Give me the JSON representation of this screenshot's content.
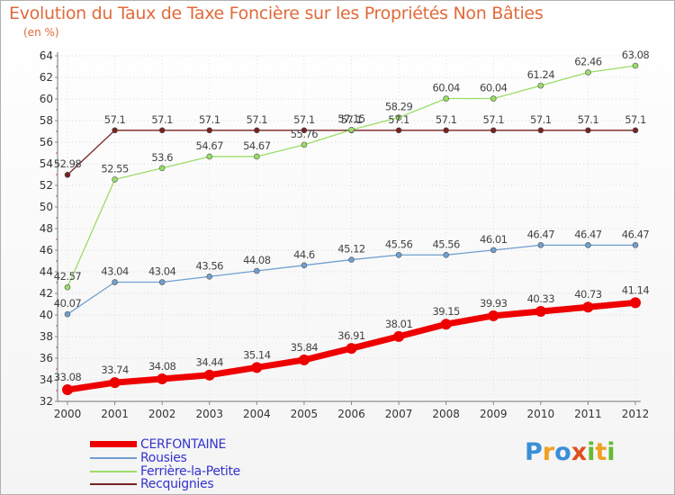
{
  "chart_data": {
    "type": "line",
    "title": "Evolution du Taux de Taxe Foncière sur les Propriétés Non Bâties",
    "ylabel": "(en %)",
    "xlabel": "",
    "ylim": [
      32,
      64
    ],
    "yticks": [
      32,
      34,
      36,
      38,
      40,
      42,
      44,
      46,
      48,
      50,
      52,
      54,
      56,
      58,
      60,
      62,
      64
    ],
    "categories": [
      "2000",
      "2001",
      "2002",
      "2003",
      "2004",
      "2005",
      "2006",
      "2007",
      "2008",
      "2009",
      "2010",
      "2011",
      "2012"
    ],
    "series": [
      {
        "name": "CERFONTAINE",
        "color": "#ee0000",
        "values": [
          33.08,
          33.74,
          34.08,
          34.44,
          35.14,
          35.84,
          36.91,
          38.01,
          39.15,
          39.93,
          40.33,
          40.73,
          41.14
        ],
        "labels": [
          "33.08",
          "33.74",
          "34.08",
          "34.44",
          "35.14",
          "35.84",
          "36.91",
          "38.01",
          "39.15",
          "39.93",
          "40.33",
          "40.73",
          "41.14"
        ]
      },
      {
        "name": "Rousies",
        "color": "#6f9fcf",
        "values": [
          40.07,
          43.04,
          43.04,
          43.56,
          44.08,
          44.6,
          45.12,
          45.56,
          45.56,
          46.01,
          46.47,
          46.47,
          46.47
        ],
        "labels": [
          "40.07",
          "43.04",
          "43.04",
          "43.56",
          "44.08",
          "44.6",
          "45.12",
          "45.56",
          "45.56",
          "46.01",
          "46.47",
          "46.47",
          "46.47"
        ]
      },
      {
        "name": "Ferrière-la-Petite",
        "color": "#99dd66",
        "values": [
          42.57,
          52.55,
          53.6,
          54.67,
          54.67,
          55.76,
          57.15,
          58.29,
          60.04,
          60.04,
          61.24,
          62.46,
          63.08
        ],
        "labels": [
          "42.57",
          "52.55",
          "53.6",
          "54.67",
          "54.67",
          "55.76",
          "57.15",
          "58.29",
          "60.04",
          "60.04",
          "61.24",
          "62.46",
          "63.08"
        ]
      },
      {
        "name": "Recquignies",
        "color": "#772222",
        "values": [
          52.98,
          57.1,
          57.1,
          57.1,
          57.1,
          57.1,
          57.1,
          57.1,
          57.1,
          57.1,
          57.1,
          57.1,
          57.1
        ],
        "labels": [
          "52.98",
          "57.1",
          "57.1",
          "57.1",
          "57.1",
          "57.1",
          "57.1",
          "57.1",
          "57.1",
          "57.1",
          "57.1",
          "57.1",
          "57.1"
        ]
      }
    ]
  },
  "brand": {
    "letters": [
      "P",
      "r",
      "o",
      "x",
      "i",
      "t",
      "i"
    ],
    "colors": [
      "#3a8fd6",
      "#f0a020",
      "#3a8fd6",
      "#e05020",
      "#66bb33",
      "#f0a020",
      "#66bb33"
    ]
  }
}
